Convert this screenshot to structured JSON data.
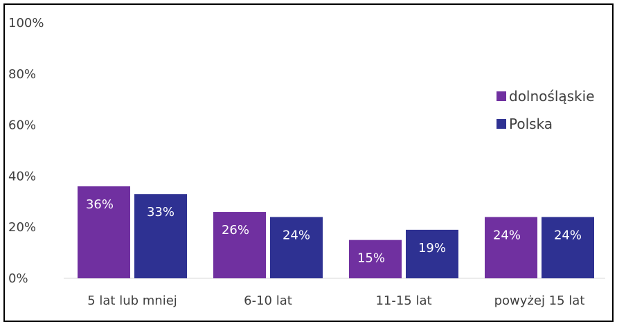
{
  "chart_data": {
    "type": "bar",
    "categories": [
      "5 lat lub mniej",
      "6-10 lat",
      "11-15 lat",
      "powyżej 15 lat"
    ],
    "series": [
      {
        "name": "dolnośląskie",
        "values": [
          36,
          26,
          15,
          24
        ],
        "labels": [
          "36%",
          "26%",
          "15%",
          "24%"
        ],
        "color": "#7030A0"
      },
      {
        "name": "Polska",
        "values": [
          33,
          24,
          19,
          24
        ],
        "labels": [
          "33%",
          "24%",
          "19%",
          "24%"
        ],
        "color": "#2E3192"
      }
    ],
    "ylim": [
      0,
      100
    ],
    "yticks": [
      "0%",
      "20%",
      "40%",
      "60%",
      "80%",
      "100%"
    ],
    "grid": false,
    "legend": "right"
  }
}
